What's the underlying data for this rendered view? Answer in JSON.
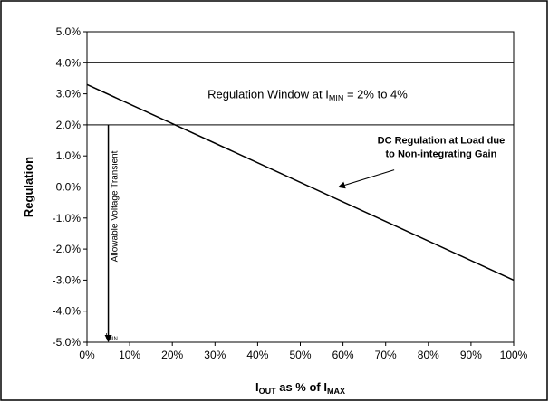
{
  "chart_data": {
    "type": "line",
    "title": "",
    "xlabel": {
      "main": "I",
      "sub": "OUT",
      "middle": " as % of I",
      "sub2": "MAX"
    },
    "ylabel": "Regulation",
    "xlim": [
      0,
      100
    ],
    "ylim": [
      -5,
      5
    ],
    "x_ticks": [
      0,
      10,
      20,
      30,
      40,
      50,
      60,
      70,
      80,
      90,
      100
    ],
    "x_tick_labels": [
      "0%",
      "10%",
      "20%",
      "30%",
      "40%",
      "50%",
      "60%",
      "70%",
      "80%",
      "90%",
      "100%"
    ],
    "y_ticks": [
      5,
      4,
      3,
      2,
      1,
      0,
      -1,
      -2,
      -3,
      -4,
      -5
    ],
    "y_tick_labels": [
      "5.0%",
      "4.0%",
      "3.0%",
      "2.0%",
      "1.0%",
      "0.0%",
      "-1.0%",
      "-2.0%",
      "-3.0%",
      "-4.0%",
      "-5.0%"
    ],
    "grid": false,
    "series": [
      {
        "x": [
          0,
          100
        ],
        "y": [
          3.3,
          -3.0
        ]
      }
    ],
    "regulation_window": {
      "x": [
        0,
        100
      ],
      "y": [
        2.0,
        4.0
      ],
      "label": {
        "main": "Regulation Window at I",
        "sub": "MIN",
        "rest": " = 2% to 4%"
      }
    },
    "annotations": {
      "dc_regulation": {
        "line1": "DC Regulation at Load due",
        "line2": "to Non-integrating Gain",
        "arrow_to": [
          59,
          0
        ]
      },
      "transient": {
        "label": "Allowable Voltage Transient",
        "x": 5,
        "from": 2.0,
        "to": -5.0
      },
      "imin_label": {
        "main": "I",
        "sub": "MIN",
        "x": 5
      }
    }
  }
}
